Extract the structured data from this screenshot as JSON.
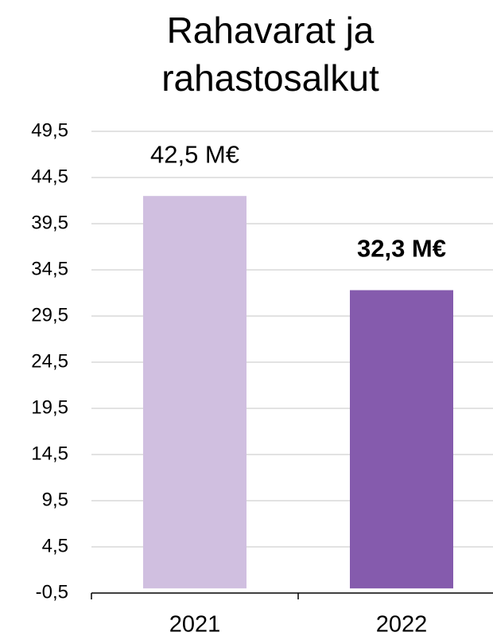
{
  "chart_data": {
    "type": "bar",
    "title": "Rahavarat ja rahastosalkut",
    "categories": [
      "2021",
      "2022"
    ],
    "values": [
      42.5,
      32.3
    ],
    "value_labels": [
      "42,5 M€",
      "32,3 M€"
    ],
    "value_label_bold": [
      false,
      true
    ],
    "colors": [
      "#d0bfe0",
      "#855bad"
    ],
    "ylim": [
      -0.5,
      49.5
    ],
    "yticks": [
      {
        "value": -0.5,
        "label": "-0,5"
      },
      {
        "value": 4.5,
        "label": "4,5"
      },
      {
        "value": 9.5,
        "label": "9,5"
      },
      {
        "value": 14.5,
        "label": "14,5"
      },
      {
        "value": 19.5,
        "label": "19,5"
      },
      {
        "value": 24.5,
        "label": "24,5"
      },
      {
        "value": 29.5,
        "label": "29,5"
      },
      {
        "value": 34.5,
        "label": "34,5"
      },
      {
        "value": 39.5,
        "label": "39,5"
      },
      {
        "value": 44.5,
        "label": "44,5"
      },
      {
        "value": 49.5,
        "label": "49,5"
      }
    ],
    "grid": true
  }
}
